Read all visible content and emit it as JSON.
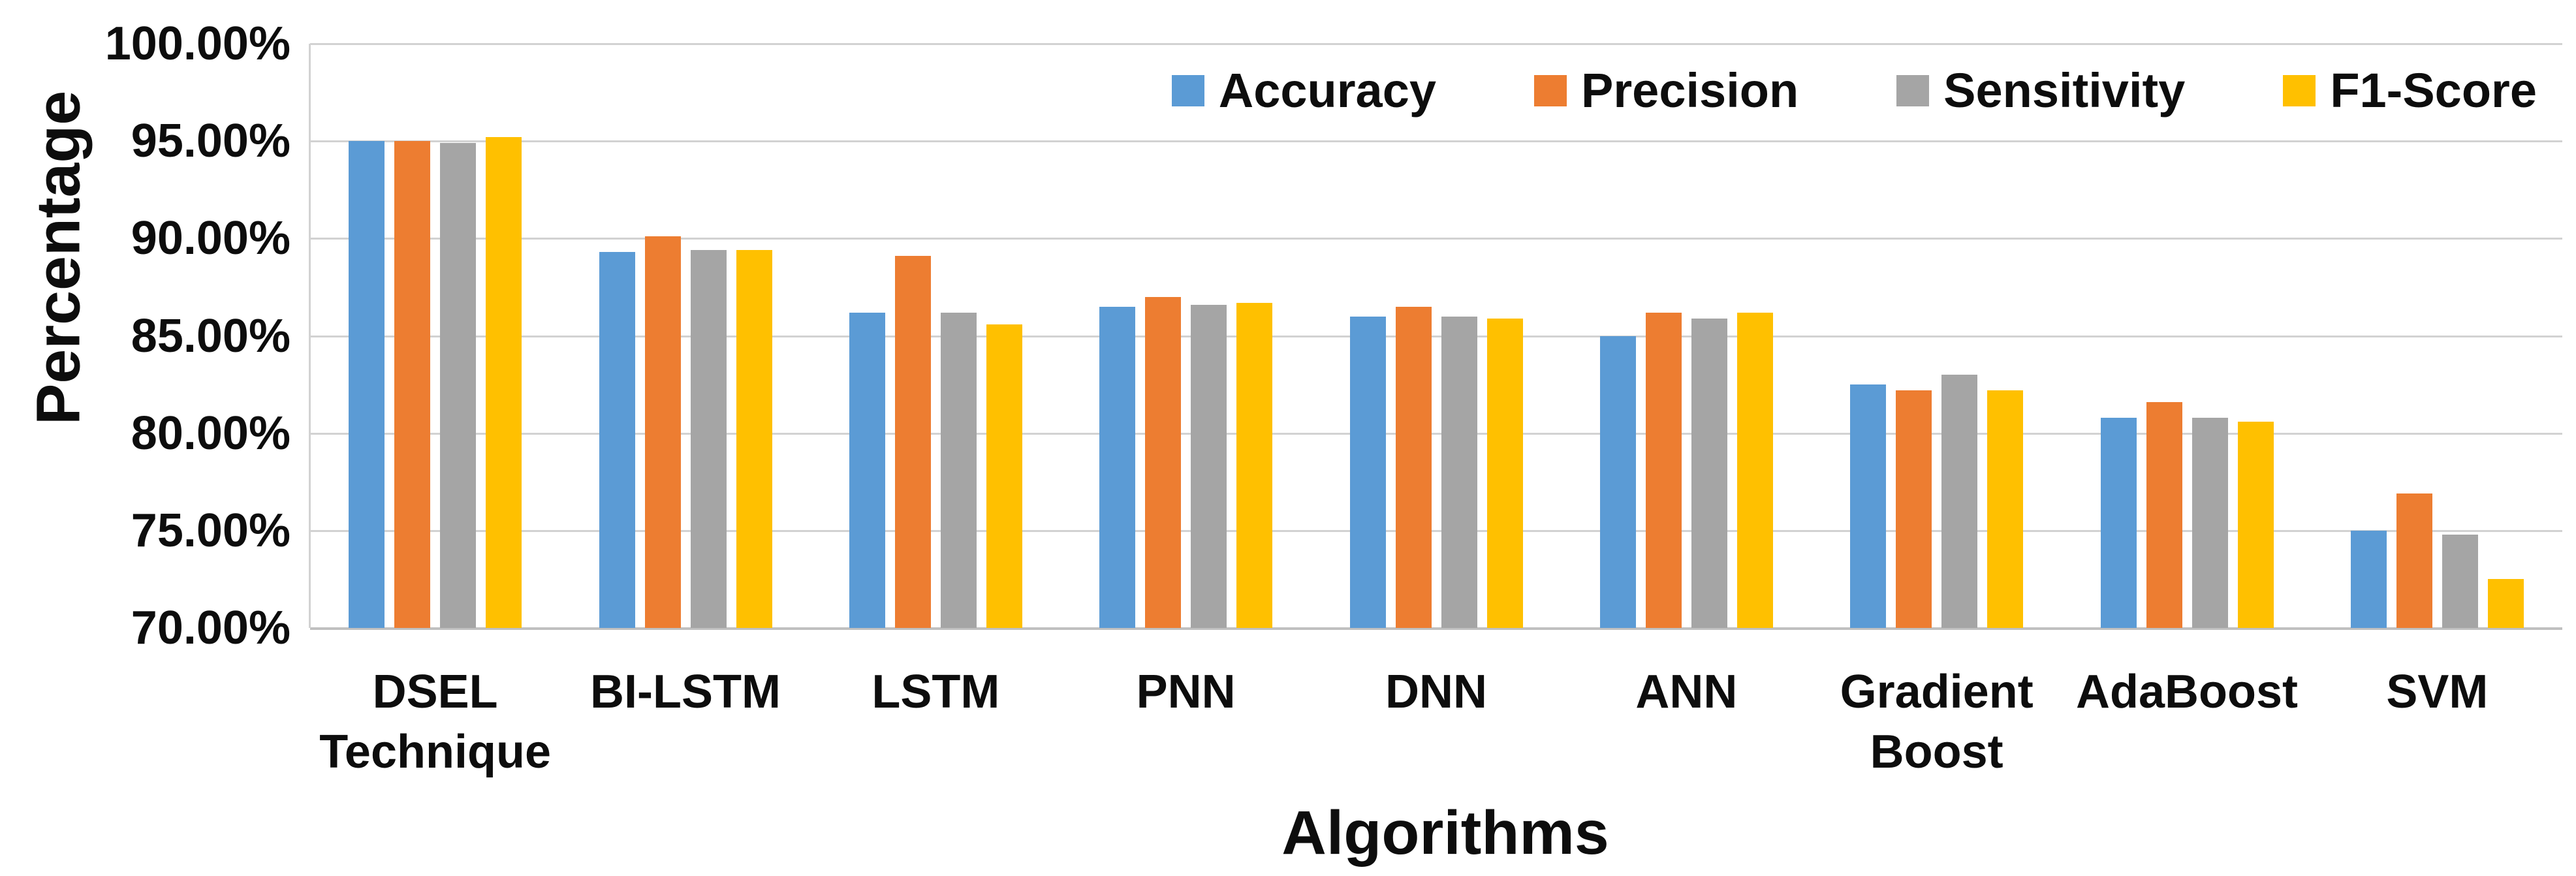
{
  "chart_data": {
    "type": "bar",
    "title": "",
    "xlabel": "Algorithms",
    "ylabel": "Percentage",
    "ylim": [
      70,
      100
    ],
    "ytick_labels": [
      "100.00%",
      "95.00%",
      "90.00%",
      "85.00%",
      "80.00%",
      "75.00%",
      "70.00%"
    ],
    "grid": true,
    "legend_position": "top-right",
    "categories": [
      "DSEL Technique",
      "BI-LSTM",
      "LSTM",
      "PNN",
      "DNN",
      "ANN",
      "Gradient Boost",
      "AdaBoost",
      "SVM"
    ],
    "series": [
      {
        "name": "Accuracy",
        "color": "#5B9BD5",
        "values": [
          95.0,
          89.3,
          86.2,
          86.5,
          86.0,
          85.0,
          82.5,
          80.8,
          75.0
        ]
      },
      {
        "name": "Precision",
        "color": "#ED7D31",
        "values": [
          95.0,
          90.1,
          89.1,
          87.0,
          86.5,
          86.2,
          82.2,
          81.6,
          76.9
        ]
      },
      {
        "name": "Sensitivity",
        "color": "#A5A5A5",
        "values": [
          94.9,
          89.4,
          86.2,
          86.6,
          86.0,
          85.9,
          83.0,
          80.8,
          74.8
        ]
      },
      {
        "name": "F1-Score",
        "color": "#FFC000",
        "values": [
          95.2,
          89.4,
          85.6,
          86.7,
          85.9,
          86.2,
          82.2,
          80.6,
          72.5
        ]
      }
    ]
  },
  "colors": {
    "gridline": "#d2d2d2",
    "axis_line": "#c0c0c0",
    "text": "#0d0d0d",
    "background": "#ffffff"
  }
}
